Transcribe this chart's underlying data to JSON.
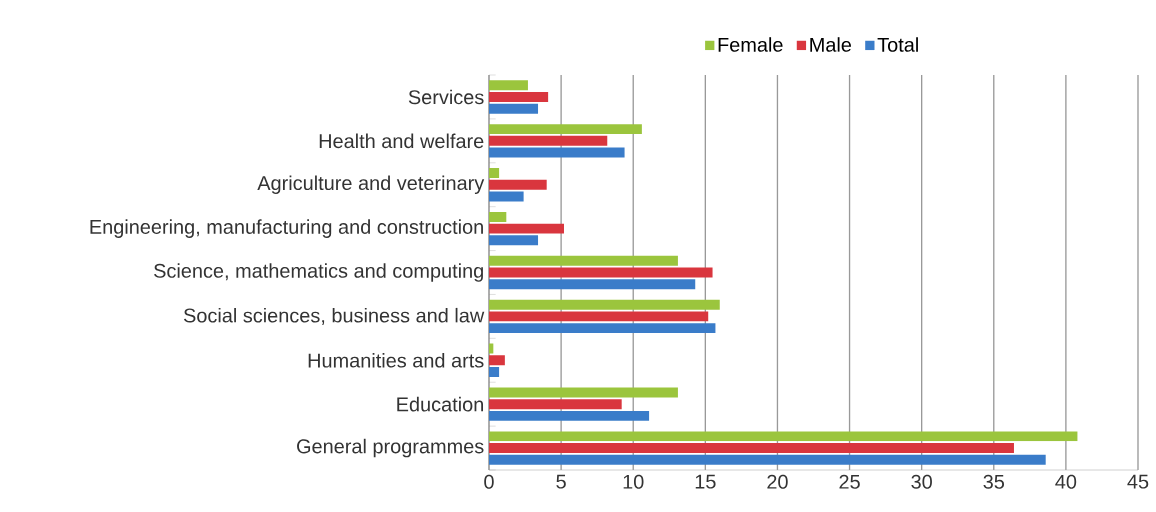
{
  "chart_data": {
    "type": "bar",
    "orientation": "horizontal",
    "categories": [
      "Services",
      "Health and welfare",
      "Agriculture and veterinary",
      "Engineering, manufacturing and construction",
      "Science, mathematics and computing",
      "Social sciences, business and law",
      "Humanities and arts",
      "Education",
      "General programmes"
    ],
    "series": [
      {
        "name": "Female",
        "color": "#9bc53d",
        "values": [
          2.7,
          10.6,
          0.7,
          1.2,
          13.1,
          16.0,
          0.3,
          13.1,
          40.8
        ]
      },
      {
        "name": "Male",
        "color": "#d9363e",
        "values": [
          4.1,
          8.2,
          4.0,
          5.2,
          15.5,
          15.2,
          1.1,
          9.2,
          36.4
        ]
      },
      {
        "name": "Total",
        "color": "#3a7cc9",
        "values": [
          3.4,
          9.4,
          2.4,
          3.4,
          14.3,
          15.7,
          0.7,
          11.1,
          38.6
        ]
      }
    ],
    "xlim": [
      0,
      45
    ],
    "xticks": [
      0,
      5,
      10,
      15,
      20,
      25,
      30,
      35,
      40,
      45
    ],
    "grid": "x",
    "legend": "top"
  }
}
